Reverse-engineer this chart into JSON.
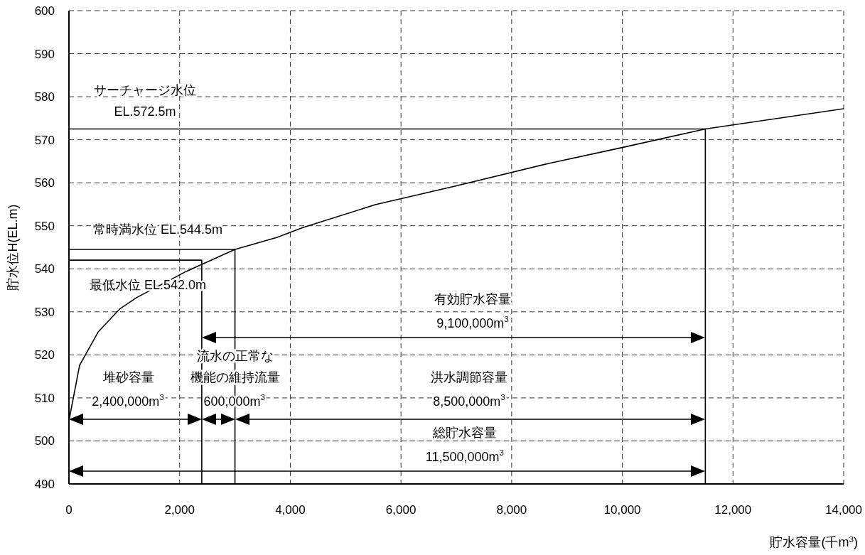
{
  "chart_data": {
    "type": "line",
    "xlabel": "貯水容量(千m$^{3}$)",
    "ylabel": "貯水位H(EL.m)",
    "xlim": [
      0,
      14000
    ],
    "ylim": [
      490,
      600
    ],
    "xticks": [
      0,
      {
        "value": 2000,
        "label": "2,000"
      },
      {
        "value": 4000,
        "label": "4,000"
      },
      {
        "value": 6000,
        "label": "6,000"
      },
      {
        "value": 8000,
        "label": "8,000"
      },
      {
        "value": 10000,
        "label": "10,000"
      },
      {
        "value": 12000,
        "label": "12,000"
      },
      {
        "value": 14000,
        "label": "14,000"
      }
    ],
    "yticks": [
      490,
      500,
      510,
      520,
      530,
      540,
      550,
      560,
      570,
      580,
      590,
      600
    ],
    "grid": true,
    "series": [
      {
        "color": "#000000",
        "x": [
          0,
          193,
          527,
          912,
          1220,
          2119,
          3000,
          3763,
          4225,
          5536,
          6974,
          8670,
          9967,
          11500,
          14000
        ],
        "values": [
          504.7,
          517.6,
          525.3,
          530.6,
          533.3,
          539.4,
          544.5,
          547.3,
          549.6,
          554.9,
          559.2,
          564.5,
          568.1,
          572.5,
          577.2
        ]
      },
      {
        "color": "#000000",
        "x": [
          0,
          11500,
          11500
        ],
        "values": [
          572.5,
          572.5,
          490
        ]
      },
      {
        "color": "#000000",
        "x": [
          0,
          3000,
          3000
        ],
        "values": [
          544.5,
          544.5,
          490
        ]
      },
      {
        "color": "#000000",
        "x": [
          0,
          2400,
          2400
        ],
        "values": [
          542,
          542,
          490
        ]
      }
    ],
    "annotations": [
      "サーチャージ水位",
      "EL.572.5m",
      "常時満水位  EL.544.5m",
      "最低水位  EL.542.0m",
      "有効貯水容量",
      "9,100,000m$^{3}$",
      "流水の正常な",
      "機能の維持流量",
      "堆砂容量",
      "2,400,000m$^{3}$",
      {
        "text": "600,000m$^{3}$",
        "x": 2990,
        "y": 505
      },
      "洪水調節容量",
      "8,500,000m$^{3}$",
      "総貯水容量",
      "11,500,000m$^{3}$"
    ]
  }
}
